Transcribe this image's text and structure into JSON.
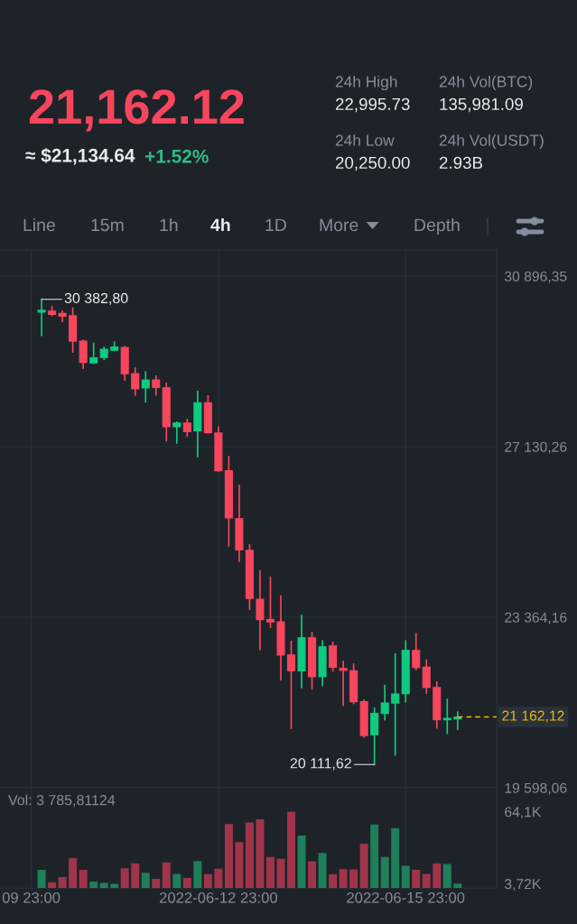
{
  "chart_data": [
    {
      "type": "other",
      "title": "21,162.12",
      "subtitle": "≈ $21,134.64",
      "annotations": [
        "+1.52%",
        "24h High",
        "22,995.73",
        "24h Low",
        "20,250.00",
        "24h Vol(BTC)",
        "135,981.09",
        "24h Vol(USDT)",
        "2.93B",
        "Line",
        "15m",
        "1h",
        "4h",
        "1D",
        "More",
        "Depth"
      ]
    },
    {
      "type": "candlestick",
      "x": [
        "2022-06-10T03:00",
        "2022-06-10T07:00",
        "2022-06-10T11:00",
        "2022-06-10T15:00",
        "2022-06-10T19:00",
        "2022-06-10T23:00",
        "2022-06-11T03:00",
        "2022-06-11T07:00",
        "2022-06-11T11:00",
        "2022-06-11T15:00",
        "2022-06-11T19:00",
        "2022-06-11T23:00",
        "2022-06-12T03:00",
        "2022-06-12T07:00",
        "2022-06-12T11:00",
        "2022-06-12T15:00",
        "2022-06-12T19:00",
        "2022-06-12T23:00",
        "2022-06-13T03:00",
        "2022-06-13T07:00",
        "2022-06-13T11:00",
        "2022-06-13T15:00",
        "2022-06-13T19:00",
        "2022-06-13T23:00",
        "2022-06-14T03:00",
        "2022-06-14T07:00",
        "2022-06-14T11:00",
        "2022-06-14T15:00",
        "2022-06-14T19:00",
        "2022-06-14T23:00",
        "2022-06-15T03:00",
        "2022-06-15T07:00",
        "2022-06-15T11:00",
        "2022-06-15T15:00",
        "2022-06-15T19:00",
        "2022-06-15T23:00",
        "2022-06-16T03:00",
        "2022-06-16T07:00",
        "2022-06-16T11:00",
        "2022-06-16T15:00",
        "2022-06-16T19:00"
      ],
      "ohlc": [
        [
          30100,
          30382.8,
          29590,
          30140
        ],
        [
          30120,
          30220,
          30030,
          30050
        ],
        [
          30070,
          30120,
          29890,
          30010
        ],
        [
          30020,
          30190,
          29220,
          29460
        ],
        [
          29460,
          29480,
          28860,
          28990
        ],
        [
          28980,
          29410,
          28970,
          29090
        ],
        [
          29100,
          29320,
          29060,
          29280
        ],
        [
          29260,
          29440,
          29250,
          29330
        ],
        [
          29320,
          29340,
          28600,
          28740
        ],
        [
          28740,
          28870,
          28270,
          28410
        ],
        [
          28430,
          28780,
          28120,
          28600
        ],
        [
          28600,
          28690,
          28270,
          28440
        ],
        [
          28430,
          28530,
          27260,
          27570
        ],
        [
          27570,
          27670,
          27210,
          27650
        ],
        [
          27650,
          27730,
          27360,
          27460
        ],
        [
          27480,
          28350,
          26910,
          28100
        ],
        [
          28100,
          28250,
          27430,
          27440
        ],
        [
          27430,
          27560,
          26590,
          26600
        ],
        [
          26600,
          26910,
          24940,
          25560
        ],
        [
          25540,
          26270,
          24600,
          24850
        ],
        [
          24840,
          24960,
          23540,
          23780
        ],
        [
          23760,
          24390,
          22650,
          23310
        ],
        [
          23310,
          24240,
          23140,
          23260
        ],
        [
          23260,
          23830,
          21980,
          22530
        ],
        [
          22530,
          22830,
          20910,
          22180
        ],
        [
          22180,
          23400,
          21810,
          22910
        ],
        [
          22910,
          23020,
          21780,
          22050
        ],
        [
          22050,
          22840,
          21860,
          22710
        ],
        [
          22730,
          22810,
          22180,
          22260
        ],
        [
          22230,
          22380,
          21420,
          22190
        ],
        [
          22180,
          22330,
          21460,
          21500
        ],
        [
          21500,
          21530,
          20720,
          20750
        ],
        [
          20770,
          21350,
          20111.62,
          21240
        ],
        [
          21240,
          21850,
          21100,
          21470
        ],
        [
          21470,
          22550,
          20320,
          21670
        ],
        [
          21680,
          22840,
          21500,
          22630
        ],
        [
          22630,
          23000,
          22210,
          22250
        ],
        [
          22260,
          22410,
          21690,
          21810
        ],
        [
          21810,
          21930,
          20920,
          21100
        ],
        [
          21100,
          21550,
          20800,
          21130
        ],
        [
          21120,
          21270,
          20890,
          21162.12
        ]
      ],
      "colors": [
        "#0ecb81",
        "#f6465d",
        "#f6465d",
        "#f6465d",
        "#f6465d",
        "#0ecb81",
        "#0ecb81",
        "#0ecb81",
        "#f6465d",
        "#f6465d",
        "#0ecb81",
        "#f6465d",
        "#f6465d",
        "#0ecb81",
        "#f6465d",
        "#0ecb81",
        "#f6465d",
        "#f6465d",
        "#f6465d",
        "#f6465d",
        "#f6465d",
        "#f6465d",
        "#f6465d",
        "#f6465d",
        "#f6465d",
        "#0ecb81",
        "#f6465d",
        "#0ecb81",
        "#f6465d",
        "#f6465d",
        "#f6465d",
        "#f6465d",
        "#0ecb81",
        "#0ecb81",
        "#0ecb81",
        "#0ecb81",
        "#f6465d",
        "#f6465d",
        "#f6465d",
        "#0ecb81",
        "#0ecb81"
      ],
      "xlim": [
        "2022-06-09T11:00",
        "2022-06-17T10:00"
      ],
      "xticks": [
        {
          "value": "2022-06-09T23:00",
          "label": null
        },
        {
          "value": "2022-06-12T23:00",
          "label": null
        },
        {
          "value": "2022-06-15T23:00",
          "label": null
        }
      ],
      "ylim": [
        19598.06,
        31474
      ],
      "yticks": [
        {
          "value": 19598.06,
          "label": "19 598,06"
        },
        {
          "value": 23364.16,
          "label": "23 364,16"
        },
        {
          "value": 27130.26,
          "label": "27 130,26"
        },
        {
          "value": 30896.35,
          "label": "30 896,35"
        }
      ],
      "grid": true,
      "tick_labels": "y",
      "annotations": [
        {
          "text": "30 382,80",
          "x": "2022-06-10T03:00",
          "y": 30382.8
        },
        {
          "text": "20 111,62",
          "x": "2022-06-15T11:00",
          "y": 20111.62
        }
      ],
      "ref_lines": [
        {
          "axis": "y",
          "value": 21162.12,
          "label": "21 162,12",
          "color": "#f0b90b",
          "line_style": "dashed"
        }
      ]
    },
    {
      "type": "bar",
      "x": [
        "2022-06-10T03:00",
        "2022-06-10T07:00",
        "2022-06-10T11:00",
        "2022-06-10T15:00",
        "2022-06-10T19:00",
        "2022-06-10T23:00",
        "2022-06-11T03:00",
        "2022-06-11T07:00",
        "2022-06-11T11:00",
        "2022-06-11T15:00",
        "2022-06-11T19:00",
        "2022-06-11T23:00",
        "2022-06-12T03:00",
        "2022-06-12T07:00",
        "2022-06-12T11:00",
        "2022-06-12T15:00",
        "2022-06-12T19:00",
        "2022-06-12T23:00",
        "2022-06-13T03:00",
        "2022-06-13T07:00",
        "2022-06-13T11:00",
        "2022-06-13T15:00",
        "2022-06-13T19:00",
        "2022-06-13T23:00",
        "2022-06-14T03:00",
        "2022-06-14T07:00",
        "2022-06-14T11:00",
        "2022-06-14T15:00",
        "2022-06-14T19:00",
        "2022-06-14T23:00",
        "2022-06-15T03:00",
        "2022-06-15T07:00",
        "2022-06-15T11:00",
        "2022-06-15T15:00",
        "2022-06-15T19:00",
        "2022-06-15T23:00",
        "2022-06-16T03:00",
        "2022-06-16T07:00",
        "2022-06-16T11:00",
        "2022-06-16T15:00",
        "2022-06-16T19:00"
      ],
      "values": [
        15400,
        4900,
        9200,
        25300,
        15400,
        5500,
        4300,
        3700,
        16600,
        20900,
        12900,
        7700,
        21600,
        12000,
        8600,
        22800,
        11700,
        16300,
        53600,
        38500,
        55100,
        57600,
        26200,
        24600,
        64100,
        44000,
        22500,
        29600,
        11700,
        16000,
        15700,
        37300,
        53300,
        26200,
        50200,
        18800,
        15400,
        12000,
        20900,
        20300,
        3800
      ],
      "colors": [
        "#1e805a",
        "#a0344a",
        "#a0344a",
        "#a0344a",
        "#a0344a",
        "#1e805a",
        "#1e805a",
        "#1e805a",
        "#a0344a",
        "#a0344a",
        "#1e805a",
        "#a0344a",
        "#a0344a",
        "#1e805a",
        "#a0344a",
        "#1e805a",
        "#a0344a",
        "#a0344a",
        "#a0344a",
        "#a0344a",
        "#a0344a",
        "#a0344a",
        "#a0344a",
        "#a0344a",
        "#a0344a",
        "#1e805a",
        "#a0344a",
        "#1e805a",
        "#a0344a",
        "#a0344a",
        "#a0344a",
        "#a0344a",
        "#1e805a",
        "#1e805a",
        "#1e805a",
        "#1e805a",
        "#a0344a",
        "#a0344a",
        "#a0344a",
        "#1e805a",
        "#1e805a"
      ],
      "xlim": [
        "2022-06-09T11:00",
        "2022-06-17T10:00"
      ],
      "xticks": [
        {
          "value": "2022-06-09T23:00",
          "label": "09 23:00"
        },
        {
          "value": "2022-06-12T23:00",
          "label": "2022-06-12 23:00"
        },
        {
          "value": "2022-06-15T23:00",
          "label": "2022-06-15 23:00"
        }
      ],
      "ylim": [
        0,
        84100
      ],
      "yticks": [
        {
          "value": 3720,
          "label": "3,72K"
        },
        {
          "value": 64100,
          "label": "64,1K"
        }
      ],
      "grid": "x",
      "annotations": [
        "Vol: 3 785,81124"
      ]
    }
  ]
}
